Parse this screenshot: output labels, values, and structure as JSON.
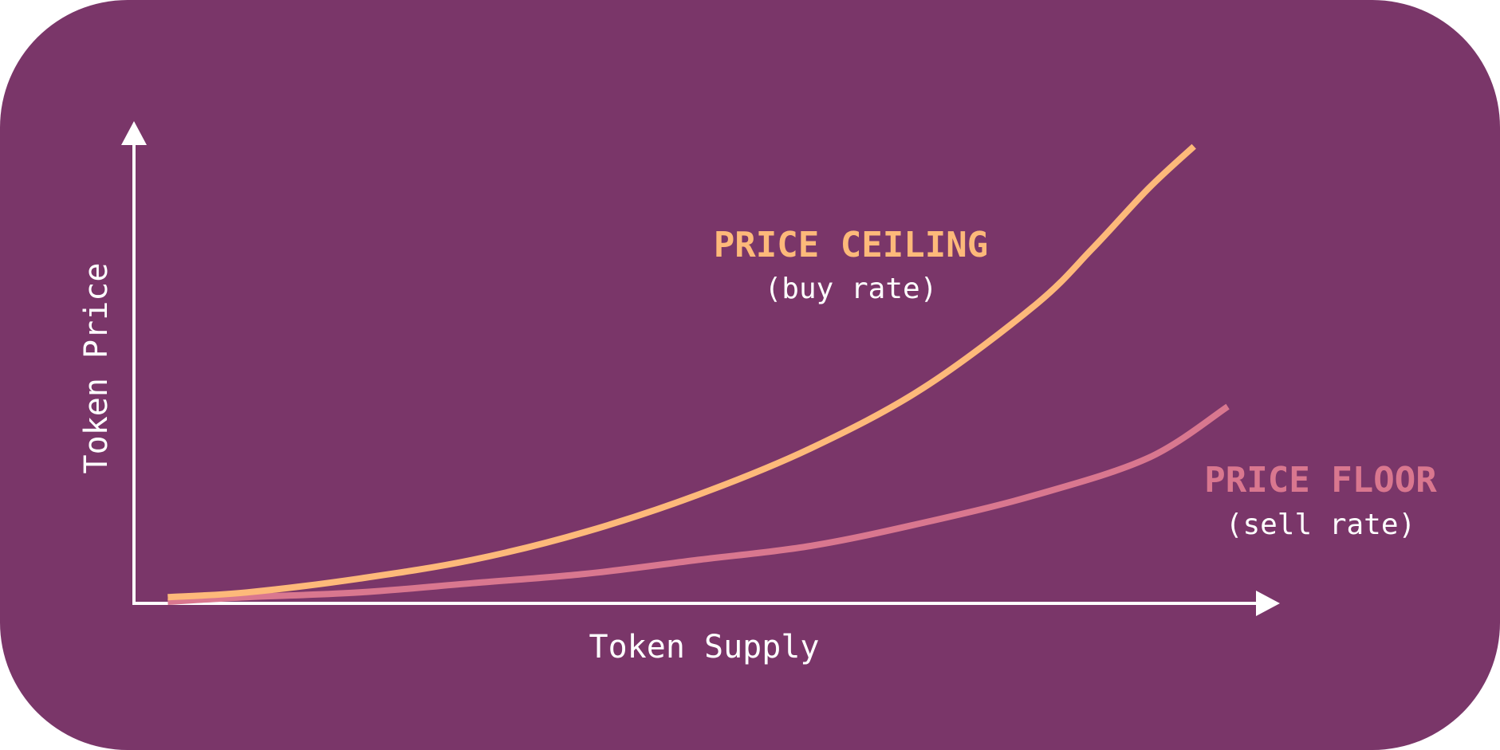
{
  "colors": {
    "background": "#7a3669",
    "axis": "#ffffff",
    "ceiling": "#fdb97a",
    "floor": "#d9778f",
    "subtext": "#ffffff"
  },
  "chart_data": {
    "type": "line",
    "xlabel": "Token Supply",
    "ylabel": "Token Price",
    "series": [
      {
        "name": "PRICE CEILING",
        "sub": "(buy rate)",
        "x": [
          0.03,
          0.1,
          0.2,
          0.3,
          0.4,
          0.5,
          0.6,
          0.7,
          0.8,
          0.85,
          0.9,
          0.94
        ],
        "y": [
          0.01,
          0.02,
          0.05,
          0.09,
          0.15,
          0.23,
          0.33,
          0.46,
          0.64,
          0.76,
          0.89,
          0.98
        ]
      },
      {
        "name": "PRICE FLOOR",
        "sub": "(sell rate)",
        "x": [
          0.03,
          0.1,
          0.2,
          0.3,
          0.4,
          0.5,
          0.6,
          0.7,
          0.8,
          0.9,
          0.97
        ],
        "y": [
          0.0,
          0.01,
          0.02,
          0.04,
          0.06,
          0.09,
          0.12,
          0.17,
          0.23,
          0.31,
          0.42
        ]
      }
    ]
  }
}
